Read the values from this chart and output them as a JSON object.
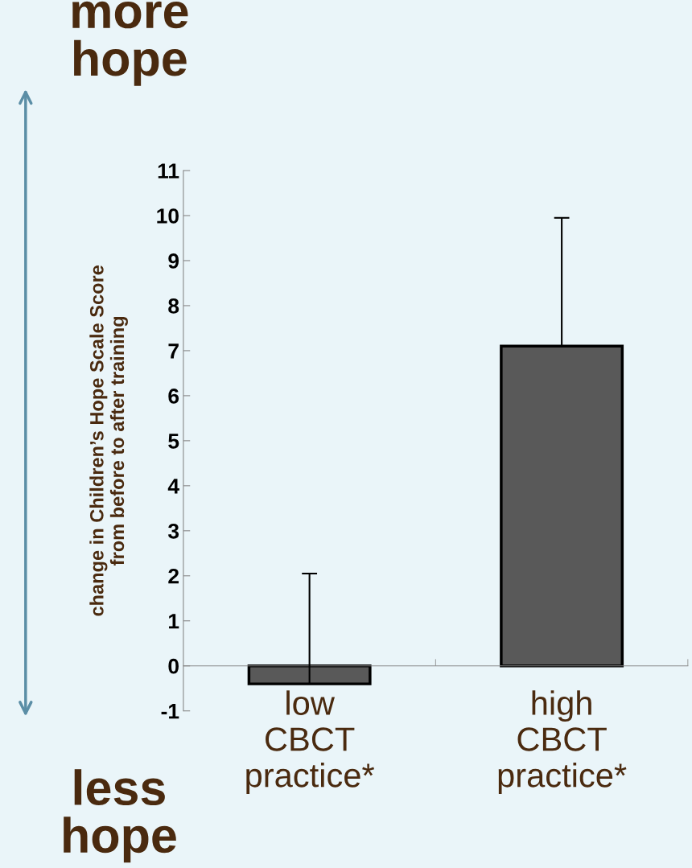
{
  "chart_data": {
    "type": "bar",
    "ylabel": "change in Children’s Hope Scale Score\nfrom before to after training",
    "categories": [
      "low\nCBCT\npractice*",
      "high\nCBCT\npractice*"
    ],
    "values": [
      -0.4,
      7.1
    ],
    "errors": [
      [
        -0.4,
        2.05
      ],
      [
        7.1,
        9.95
      ]
    ],
    "color": "#595959",
    "ylim": [
      -1,
      11
    ],
    "yticks": [
      -1,
      0,
      1,
      2,
      3,
      4,
      5,
      6,
      7,
      8,
      9,
      10,
      11
    ],
    "grid": false,
    "legend": false,
    "annotations": [
      "more\nhope",
      "less\nhope"
    ]
  }
}
